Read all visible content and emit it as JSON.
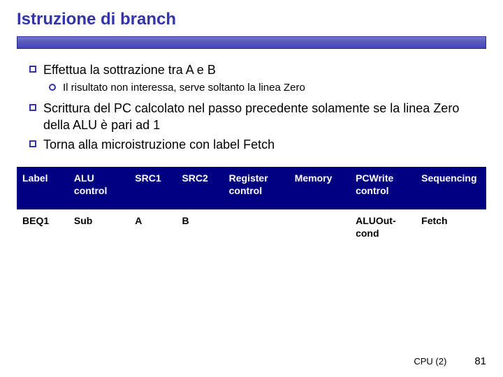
{
  "title": "Istruzione di branch",
  "colors": {
    "title": "#3333aa",
    "rule_gradient_top": "#7a7ad0",
    "rule_gradient_mid": "#5a5ac0",
    "rule_gradient_bot": "#4646b0",
    "rule_border": "#2a2a88",
    "bullet_border": "#3333aa",
    "table_header_bg": "#000080",
    "table_header_fg": "#ffffff",
    "body_bg": "#ffffff"
  },
  "typography": {
    "title_fontsize": 24,
    "body_fontsize": 18,
    "sub_fontsize": 15,
    "table_fontsize": 14,
    "footer_fontsize": 13,
    "font_family": "Comic Sans MS"
  },
  "bullets": [
    {
      "text": "Effettua la sottrazione tra A e B",
      "children": [
        {
          "text": "Il risultato non interessa, serve soltanto la linea Zero"
        }
      ]
    },
    {
      "text": "Scrittura del PC calcolato nel passo precedente solamente se la linea Zero della ALU è pari ad 1",
      "children": []
    },
    {
      "text": "Torna alla microistruzione con label Fetch",
      "children": []
    }
  ],
  "table": {
    "col_widths_pct": [
      11,
      13,
      10,
      10,
      14,
      13,
      14,
      15
    ],
    "columns": [
      "Label",
      "ALU control",
      "SRC1",
      "SRC2",
      "Register control",
      "Memory",
      "PCWrite control",
      "Sequencing"
    ],
    "rows": [
      [
        "BEQ1",
        "Sub",
        "A",
        "B",
        "",
        "",
        "ALUOut-cond",
        "Fetch"
      ]
    ]
  },
  "footer": {
    "label": "CPU (2)",
    "page": "81"
  }
}
